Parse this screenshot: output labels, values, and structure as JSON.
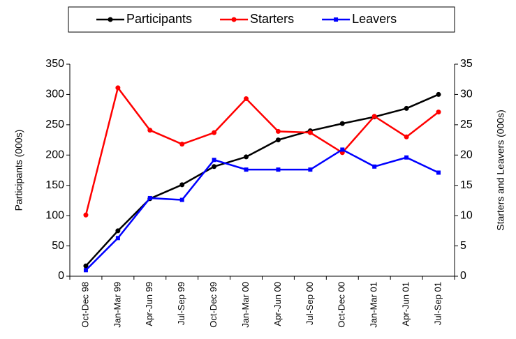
{
  "chart_data": {
    "type": "line",
    "categories": [
      "Oct-Dec 98",
      "Jan-Mar 99",
      "Apr-Jun 99",
      "Jul-Sep 99",
      "Oct-Dec 99",
      "Jan-Mar 00",
      "Apr-Jun 00",
      "Jul-Sep 00",
      "Oct-Dec 00",
      "Jan-Mar 01",
      "Apr-Jun 01",
      "Jul-Sep 01"
    ],
    "y_label": "Participants (000s)",
    "y2_label": "Starters and Leavers (000s)",
    "ylim": [
      0,
      350
    ],
    "yticks": [
      0,
      50,
      100,
      150,
      200,
      250,
      300,
      350
    ],
    "y2lim": [
      0,
      35
    ],
    "y2ticks": [
      0,
      5,
      10,
      15,
      20,
      25,
      30,
      35
    ],
    "grid": false,
    "legend": "top",
    "series": [
      {
        "name": "Participants",
        "color": "#000000",
        "axis": "y",
        "values": [
          17,
          75,
          128,
          151,
          181,
          197,
          225,
          240,
          252,
          263,
          277,
          300
        ]
      },
      {
        "name": "Starters",
        "color": "#ff0000",
        "axis": "y2",
        "values": [
          10.1,
          31.1,
          24.1,
          21.8,
          23.7,
          29.3,
          23.9,
          23.7,
          20.4,
          26.4,
          23,
          27.1
        ]
      },
      {
        "name": "Leavers",
        "color": "#0000ff",
        "axis": "y2",
        "values": [
          1,
          6.3,
          12.9,
          12.6,
          19.2,
          17.6,
          17.6,
          17.6,
          20.9,
          18.1,
          19.6,
          17.1
        ]
      }
    ]
  }
}
